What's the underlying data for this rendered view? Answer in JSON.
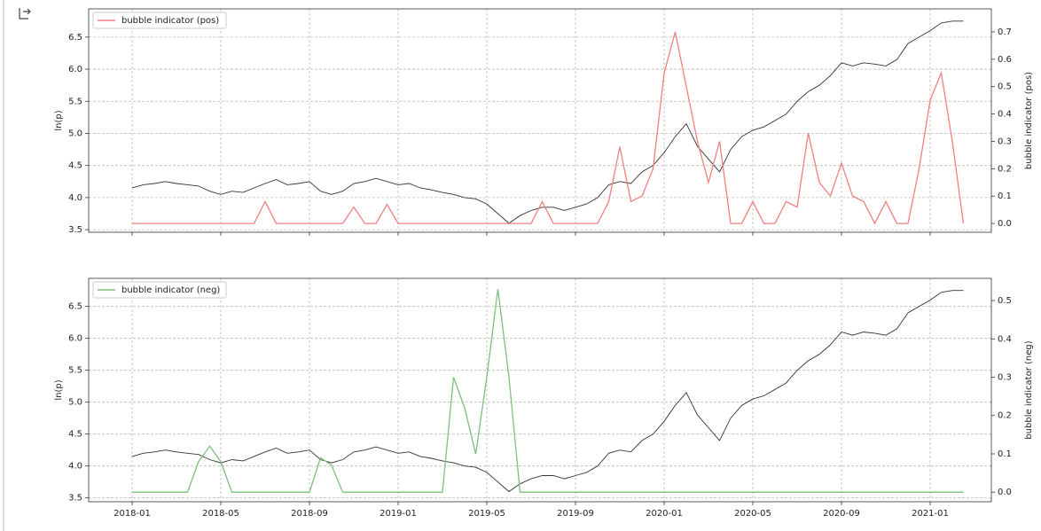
{
  "chart_data": [
    {
      "type": "line",
      "ylabel": "ln(p)",
      "y2label": "bubble indicator (pos)",
      "xlim": [
        -1.96,
        38.76
      ],
      "ylim": [
        3.46,
        6.94
      ],
      "y2lim": [
        -0.032,
        0.784
      ],
      "xticks": [
        0,
        4,
        8,
        12,
        16,
        20,
        24,
        28,
        32,
        36
      ],
      "yticks": [
        3.5,
        {
          "value": 4,
          "label": "4.0"
        },
        4.5,
        {
          "value": 5,
          "label": "5.0"
        },
        5.5,
        {
          "value": 6,
          "label": "6.0"
        },
        6.5
      ],
      "y2ticks": [
        {
          "value": 0,
          "label": "0.0"
        },
        0.1,
        0.2,
        0.3,
        0.4,
        0.5,
        0.6,
        0.7
      ],
      "grid": true,
      "legend": "upper left",
      "x": [
        0,
        0.5,
        1,
        1.5,
        2,
        2.5,
        3,
        3.5,
        4,
        4.5,
        5,
        5.5,
        6,
        6.5,
        7,
        7.5,
        8,
        8.5,
        9,
        9.5,
        10,
        10.5,
        11,
        11.5,
        12,
        12.5,
        13,
        13.5,
        14,
        14.5,
        15,
        15.5,
        16,
        16.5,
        17,
        17.5,
        18,
        18.5,
        19,
        19.5,
        20,
        20.5,
        21,
        21.5,
        22,
        22.5,
        23,
        23.5,
        24,
        24.5,
        25,
        25.5,
        26,
        26.5,
        27,
        27.5,
        28,
        28.5,
        29,
        29.5,
        30,
        30.5,
        31,
        31.5,
        32,
        32.5,
        33,
        33.5,
        34,
        34.5,
        35,
        35.5,
        36,
        36.5,
        37,
        37.5
      ],
      "series": [
        {
          "color": "#333333",
          "values": [
            4.15,
            4.2,
            4.22,
            4.25,
            4.22,
            4.2,
            4.18,
            4.1,
            4.05,
            4.1,
            4.08,
            4.15,
            4.22,
            4.28,
            4.2,
            4.22,
            4.25,
            4.1,
            4.05,
            4.1,
            4.22,
            4.25,
            4.3,
            4.25,
            4.2,
            4.22,
            4.15,
            4.12,
            4.08,
            4.05,
            4.0,
            3.98,
            3.9,
            3.75,
            3.6,
            3.72,
            3.8,
            3.85,
            3.85,
            3.8,
            3.85,
            3.9,
            4.0,
            4.2,
            4.25,
            4.22,
            4.4,
            4.5,
            4.7,
            4.95,
            5.15,
            4.8,
            4.6,
            4.4,
            4.75,
            4.95,
            5.05,
            5.1,
            5.2,
            5.3,
            5.5,
            5.65,
            5.75,
            5.9,
            6.1,
            6.05,
            6.1,
            6.08,
            6.05,
            6.15,
            6.4,
            6.5,
            6.6,
            6.72,
            6.75,
            6.75
          ]
        },
        {
          "name": "bubble indicator (pos)",
          "color": "#f08080",
          "axis": "y2",
          "values": [
            0,
            0,
            0,
            0,
            0,
            0,
            0,
            0,
            0,
            0,
            0,
            0,
            0.08,
            0,
            0,
            0,
            0,
            0,
            0,
            0,
            0.06,
            0,
            0,
            0.07,
            0,
            0,
            0,
            0,
            0,
            0,
            0,
            0,
            0,
            0,
            0,
            0,
            0,
            0.08,
            0,
            0,
            0,
            0,
            0,
            0.08,
            0.28,
            0.08,
            0.1,
            0.2,
            0.55,
            0.7,
            0.5,
            0.3,
            0.15,
            0.3,
            0,
            0,
            0.08,
            0,
            0,
            0.08,
            0.06,
            0.33,
            0.15,
            0.1,
            0.22,
            0.1,
            0.08,
            0,
            0.08,
            0,
            0,
            0.2,
            0.45,
            0.55,
            0.3,
            0
          ]
        }
      ]
    },
    {
      "type": "line",
      "ylabel": "ln(p)",
      "y2label": "bubble indicator (neg)",
      "xlim": [
        -1.96,
        38.76
      ],
      "ylim": [
        3.44,
        6.94
      ],
      "y2lim": [
        -0.025,
        0.558
      ],
      "xticks": [
        {
          "value": 0,
          "label": "2018-01"
        },
        {
          "value": 4,
          "label": "2018-05"
        },
        {
          "value": 8,
          "label": "2018-09"
        },
        {
          "value": 12,
          "label": "2019-01"
        },
        {
          "value": 16,
          "label": "2019-05"
        },
        {
          "value": 20,
          "label": "2019-09"
        },
        {
          "value": 24,
          "label": "2020-01"
        },
        {
          "value": 28,
          "label": "2020-05"
        },
        {
          "value": 32,
          "label": "2020-09"
        },
        {
          "value": 36,
          "label": "2021-01"
        }
      ],
      "yticks": [
        3.5,
        {
          "value": 4,
          "label": "4.0"
        },
        4.5,
        {
          "value": 5,
          "label": "5.0"
        },
        5.5,
        {
          "value": 6,
          "label": "6.0"
        },
        6.5
      ],
      "y2ticks": [
        {
          "value": 0,
          "label": "0.0"
        },
        0.1,
        0.2,
        0.3,
        0.4,
        0.5
      ],
      "grid": true,
      "legend": "upper left",
      "x": [
        0,
        0.5,
        1,
        1.5,
        2,
        2.5,
        3,
        3.5,
        4,
        4.5,
        5,
        5.5,
        6,
        6.5,
        7,
        7.5,
        8,
        8.5,
        9,
        9.5,
        10,
        10.5,
        11,
        11.5,
        12,
        12.5,
        13,
        13.5,
        14,
        14.5,
        15,
        15.5,
        16,
        16.5,
        17,
        17.5,
        18,
        18.5,
        19,
        19.5,
        20,
        20.5,
        21,
        21.5,
        22,
        22.5,
        23,
        23.5,
        24,
        24.5,
        25,
        25.5,
        26,
        26.5,
        27,
        27.5,
        28,
        28.5,
        29,
        29.5,
        30,
        30.5,
        31,
        31.5,
        32,
        32.5,
        33,
        33.5,
        34,
        34.5,
        35,
        35.5,
        36,
        36.5,
        37,
        37.5
      ],
      "series": [
        {
          "color": "#333333",
          "values": [
            4.15,
            4.2,
            4.22,
            4.25,
            4.22,
            4.2,
            4.18,
            4.1,
            4.05,
            4.1,
            4.08,
            4.15,
            4.22,
            4.28,
            4.2,
            4.22,
            4.25,
            4.1,
            4.05,
            4.1,
            4.22,
            4.25,
            4.3,
            4.25,
            4.2,
            4.22,
            4.15,
            4.12,
            4.08,
            4.05,
            4.0,
            3.98,
            3.9,
            3.75,
            3.6,
            3.72,
            3.8,
            3.85,
            3.85,
            3.8,
            3.85,
            3.9,
            4.0,
            4.2,
            4.25,
            4.22,
            4.4,
            4.5,
            4.7,
            4.95,
            5.15,
            4.8,
            4.6,
            4.4,
            4.75,
            4.95,
            5.05,
            5.1,
            5.2,
            5.3,
            5.5,
            5.65,
            5.75,
            5.9,
            6.1,
            6.05,
            6.1,
            6.08,
            6.05,
            6.15,
            6.4,
            6.5,
            6.6,
            6.72,
            6.75,
            6.75
          ]
        },
        {
          "name": "bubble indicator (neg)",
          "color": "#7fbf7f",
          "axis": "y2",
          "values": [
            0,
            0,
            0,
            0,
            0,
            0,
            0.08,
            0.12,
            0.08,
            0,
            0,
            0,
            0,
            0,
            0,
            0,
            0,
            0.09,
            0.07,
            0,
            0,
            0,
            0,
            0,
            0,
            0,
            0,
            0,
            0,
            0.3,
            0.22,
            0.1,
            0.3,
            0.53,
            0.3,
            0,
            0,
            0,
            0,
            0,
            0,
            0,
            0,
            0,
            0,
            0,
            0,
            0,
            0,
            0,
            0,
            0,
            0,
            0,
            0,
            0,
            0,
            0,
            0,
            0,
            0,
            0,
            0,
            0,
            0,
            0,
            0,
            0,
            0,
            0,
            0,
            0,
            0,
            0,
            0,
            0
          ]
        }
      ]
    }
  ]
}
